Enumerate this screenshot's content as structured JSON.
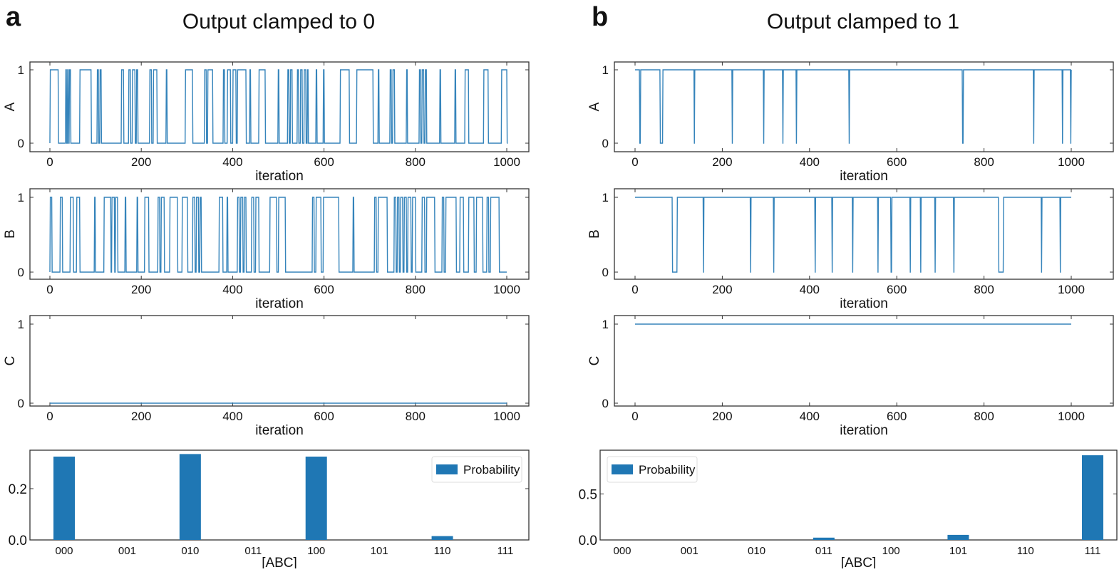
{
  "chart_data": [
    {
      "panel_label": "a",
      "title": "Output clamped to 0",
      "line_color": "#1f77b4",
      "series": [
        {
          "type": "line",
          "ylabel": "A",
          "xlabel": "iteration",
          "xlim": [
            0,
            1000
          ],
          "ylim": [
            0,
            1
          ],
          "xticks": [
            "0",
            "200",
            "400",
            "600",
            "800",
            "1000"
          ],
          "yticks": [
            "0",
            "1"
          ],
          "base_value": 0,
          "high_intervals": [
            [
              0,
              18
            ],
            [
              34,
              36
            ],
            [
              38,
              40
            ],
            [
              42,
              45
            ],
            [
              65,
              90
            ],
            [
              103,
              106
            ],
            [
              109,
              112
            ],
            [
              156,
              161
            ],
            [
              172,
              176
            ],
            [
              180,
              186
            ],
            [
              189,
              192
            ],
            [
              218,
              222
            ],
            [
              226,
              234
            ],
            [
              254,
              256
            ],
            [
              296,
              312
            ],
            [
              338,
              342
            ],
            [
              345,
              356
            ],
            [
              379,
              382
            ],
            [
              388,
              395
            ],
            [
              400,
              407
            ],
            [
              410,
              429
            ],
            [
              437,
              439
            ],
            [
              457,
              471
            ],
            [
              499,
              501
            ],
            [
              520,
              523
            ],
            [
              526,
              530
            ],
            [
              541,
              544
            ],
            [
              548,
              552
            ],
            [
              556,
              560
            ],
            [
              563,
              565
            ],
            [
              582,
              584
            ],
            [
              598,
              600
            ],
            [
              635,
              655
            ],
            [
              671,
              707
            ],
            [
              718,
              720
            ],
            [
              744,
              747
            ],
            [
              750,
              754
            ],
            [
              780,
              782
            ],
            [
              808,
              811
            ],
            [
              814,
              818
            ],
            [
              821,
              824
            ],
            [
              853,
              855
            ],
            [
              886,
              888
            ],
            [
              908,
              916
            ],
            [
              949,
              959
            ],
            [
              988,
              1000
            ]
          ]
        },
        {
          "type": "line",
          "ylabel": "B",
          "xlabel": "iteration",
          "xlim": [
            0,
            1000
          ],
          "ylim": [
            0,
            1
          ],
          "xticks": [
            "0",
            "200",
            "400",
            "600",
            "800",
            "1000"
          ],
          "yticks": [
            "0",
            "1"
          ],
          "base_value": 0,
          "high_intervals": [
            [
              0,
              4
            ],
            [
              22,
              27
            ],
            [
              44,
              51
            ],
            [
              58,
              65
            ],
            [
              97,
              99
            ],
            [
              118,
              133
            ],
            [
              135,
              141
            ],
            [
              143,
              148
            ],
            [
              164,
              166
            ],
            [
              190,
              192
            ],
            [
              207,
              216
            ],
            [
              236,
              240
            ],
            [
              243,
              250
            ],
            [
              262,
              279
            ],
            [
              289,
              301
            ],
            [
              312,
              317
            ],
            [
              320,
              325
            ],
            [
              328,
              331
            ],
            [
              370,
              378
            ],
            [
              387,
              389
            ],
            [
              410,
              414
            ],
            [
              417,
              422
            ],
            [
              425,
              429
            ],
            [
              441,
              446
            ],
            [
              450,
              457
            ],
            [
              481,
              496
            ],
            [
              500,
              515
            ],
            [
              574,
              578
            ],
            [
              582,
              593
            ],
            [
              598,
              632
            ],
            [
              663,
              665
            ],
            [
              710,
              714
            ],
            [
              718,
              738
            ],
            [
              753,
              757
            ],
            [
              760,
              764
            ],
            [
              767,
              772
            ],
            [
              775,
              780
            ],
            [
              783,
              790
            ],
            [
              793,
              800
            ],
            [
              814,
              820
            ],
            [
              824,
              842
            ],
            [
              858,
              862
            ],
            [
              866,
              889
            ],
            [
              897,
              905
            ],
            [
              916,
              928
            ],
            [
              933,
              947
            ],
            [
              956,
              960
            ],
            [
              964,
              983
            ]
          ]
        },
        {
          "type": "line",
          "ylabel": "C",
          "xlabel": "iteration",
          "xlim": [
            0,
            1000
          ],
          "ylim": [
            0,
            1
          ],
          "xticks": [
            "0",
            "200",
            "400",
            "600",
            "800",
            "1000"
          ],
          "yticks": [
            "0",
            "1"
          ],
          "base_value": 0,
          "high_intervals": []
        }
      ],
      "bar": {
        "type": "bar",
        "xlabel": "[ABC]",
        "legend": "Probability",
        "legend_position": "top-right",
        "categories": [
          "000",
          "001",
          "010",
          "011",
          "100",
          "101",
          "110",
          "111"
        ],
        "values": [
          0.325,
          0.0,
          0.335,
          0.0,
          0.325,
          0.0,
          0.015,
          0.0
        ],
        "ylim": [
          0,
          0.35
        ],
        "yticks": [
          "0.0",
          "0.2"
        ],
        "ytick_values": [
          0,
          0.2
        ]
      }
    },
    {
      "panel_label": "b",
      "title": "Output clamped to 1",
      "line_color": "#1f77b4",
      "series": [
        {
          "type": "line",
          "ylabel": "A",
          "xlabel": "iteration",
          "xlim": [
            0,
            1000
          ],
          "ylim": [
            0,
            1
          ],
          "xticks": [
            "0",
            "200",
            "400",
            "600",
            "800",
            "1000"
          ],
          "yticks": [
            "0",
            "1"
          ],
          "base_value": 1,
          "low_intervals": [
            [
              10,
              12
            ],
            [
              57,
              63
            ],
            [
              135,
              136
            ],
            [
              222,
              223
            ],
            [
              294,
              295
            ],
            [
              338,
              339
            ],
            [
              369,
              370
            ],
            [
              490,
              491
            ],
            [
              750,
              752
            ],
            [
              913,
              914
            ],
            [
              979,
              980
            ],
            [
              998,
              999
            ]
          ]
        },
        {
          "type": "line",
          "ylabel": "B",
          "xlabel": "iteration",
          "xlim": [
            0,
            1000
          ],
          "ylim": [
            0,
            1
          ],
          "xticks": [
            "0",
            "200",
            "400",
            "600",
            "800",
            "1000"
          ],
          "yticks": [
            "0",
            "1"
          ],
          "base_value": 1,
          "low_intervals": [
            [
              85,
              96
            ],
            [
              156,
              157
            ],
            [
              264,
              265
            ],
            [
              317,
              318
            ],
            [
              412,
              413
            ],
            [
              451,
              452
            ],
            [
              498,
              499
            ],
            [
              556,
              557
            ],
            [
              586,
              588
            ],
            [
              630,
              631
            ],
            [
              654,
              655
            ],
            [
              687,
              688
            ],
            [
              730,
              731
            ],
            [
              833,
              844
            ],
            [
              931,
              932
            ],
            [
              974,
              975
            ]
          ]
        },
        {
          "type": "line",
          "ylabel": "C",
          "xlabel": "iteration",
          "xlim": [
            0,
            1000
          ],
          "ylim": [
            0,
            1
          ],
          "xticks": [
            "0",
            "200",
            "400",
            "600",
            "800",
            "1000"
          ],
          "yticks": [
            "0",
            "1"
          ],
          "base_value": 1,
          "low_intervals": []
        }
      ],
      "bar": {
        "type": "bar",
        "xlabel": "[ABC]",
        "legend": "Probability",
        "legend_position": "top-left",
        "categories": [
          "000",
          "001",
          "010",
          "011",
          "100",
          "101",
          "110",
          "111"
        ],
        "values": [
          0.0,
          0.0,
          0.0,
          0.025,
          0.0,
          0.055,
          0.0,
          0.92
        ],
        "ylim": [
          0,
          0.975
        ],
        "yticks": [
          "0.0",
          "0.5"
        ],
        "ytick_values": [
          0,
          0.5
        ]
      }
    }
  ]
}
